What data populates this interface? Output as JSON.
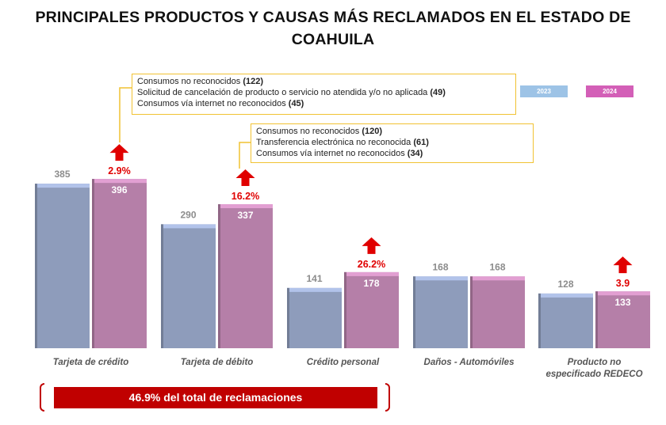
{
  "chart_data": {
    "type": "bar",
    "title_lines": [
      "PRINCIPALES PRODUCTOS Y CAUSAS MÁS RECLAMADOS EN EL ESTADO DE",
      "COAHUILA"
    ],
    "categories": [
      "Tarjeta de crédito",
      "Tarjeta de débito",
      "Crédito personal",
      "Daños - Automóviles",
      "Producto no especificado REDECO"
    ],
    "category_lines": [
      [
        "Tarjeta de crédito"
      ],
      [
        "Tarjeta de débito"
      ],
      [
        "Crédito personal"
      ],
      [
        "Daños - Automóviles"
      ],
      [
        "Producto no",
        "especificado REDECO"
      ]
    ],
    "series": [
      {
        "name": "2023",
        "values": [
          385,
          290,
          141,
          168,
          128
        ],
        "labels": [
          "385",
          "290",
          "141",
          "168",
          "128"
        ]
      },
      {
        "name": "2024",
        "values": [
          396,
          337,
          178,
          168,
          133
        ],
        "labels": [
          "396",
          "337",
          "178",
          "168",
          "133"
        ]
      }
    ],
    "changes": [
      "2.9%",
      "16.2%",
      "26.2%",
      "",
      "3.9"
    ],
    "legend_position": "top-right",
    "ylim": [
      0,
      420
    ]
  },
  "colors": {
    "series_2023": "#8e9cbb",
    "series_2024": "#b57fa8",
    "legend_2023": "#9dc3e6",
    "legend_2024": "#d35fb7",
    "highlight_red": "#e00000",
    "callout_border": "#f1c232"
  },
  "callouts": [
    {
      "rows": [
        {
          "text": "Consumos no reconocidos",
          "value": "(122)"
        },
        {
          "text": "Solicitud de cancelación de producto o servicio no atendida y/o no aplicada",
          "value": "(49)"
        },
        {
          "text": "Consumos vía internet no reconocidos",
          "value": "(45)"
        }
      ]
    },
    {
      "rows": [
        {
          "text": "Consumos no reconocidos",
          "value": "(120)"
        },
        {
          "text": "Transferencia electrónica no reconocida",
          "value": "(61)"
        },
        {
          "text": "Consumos vía internet no reconocidos",
          "value": "(34)"
        }
      ]
    }
  ],
  "summary": "46.9% del total de reclamaciones"
}
